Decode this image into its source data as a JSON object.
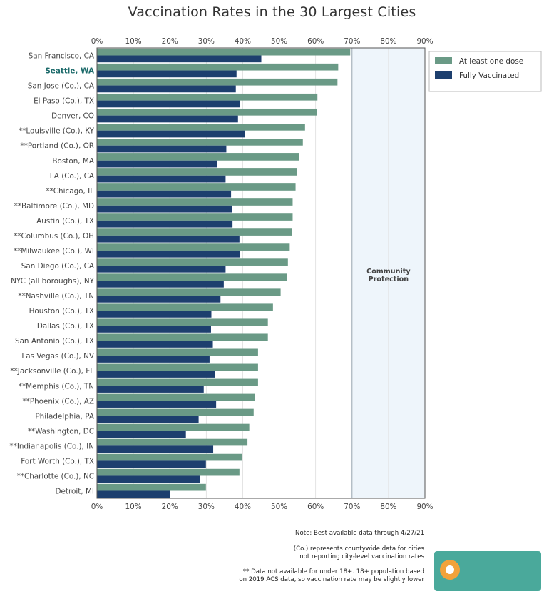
{
  "chart_data": {
    "type": "bar",
    "orientation": "horizontal",
    "title": "Vaccination Rates in the 30 Largest Cities",
    "xlim": [
      0,
      90
    ],
    "x_ticks": [
      "0%",
      "10%",
      "20%",
      "30%",
      "40%",
      "50%",
      "60%",
      "70%",
      "80%",
      "90%"
    ],
    "grid": true,
    "legend_position": "top-right",
    "highlighted_category": "Seattle, WA",
    "categories": [
      "San Francisco, CA",
      "Seattle, WA",
      "San Jose (Co.), CA",
      "El Paso (Co.), TX",
      "Denver, CO",
      "**Louisville (Co.), KY",
      "**Portland (Co.), OR",
      "Boston, MA",
      "LA (Co.), CA",
      "**Chicago, IL",
      "**Baltimore (Co.), MD",
      "Austin (Co.), TX",
      "**Columbus (Co.), OH",
      "**Milwaukee (Co.), WI",
      "San Diego (Co.), CA",
      "NYC (all boroughs), NY",
      "**Nashville (Co.), TN",
      "Houston (Co.), TX",
      "Dallas (Co.), TX",
      "San Antonio (Co.), TX",
      "Las Vegas (Co.), NV",
      "**Jacksonville (Co.), FL",
      "**Memphis (Co.), TN",
      "**Phoenix (Co.), AZ",
      "Philadelphia, PA",
      "**Washington, DC",
      "**Indianapolis (Co.), IN",
      "Fort Worth (Co.), TX",
      "**Charlotte (Co.), NC",
      "Detroit, MI"
    ],
    "series": [
      {
        "name": "At least one dose",
        "color": "#6a9a86",
        "values": [
          69.5,
          66.2,
          66.0,
          60.5,
          60.3,
          57.1,
          56.5,
          55.5,
          54.8,
          54.5,
          53.7,
          53.7,
          53.6,
          52.9,
          52.4,
          52.2,
          50.4,
          48.3,
          46.9,
          46.9,
          44.2,
          44.2,
          44.2,
          43.3,
          43.0,
          41.8,
          41.3,
          39.8,
          39.1,
          29.9
        ]
      },
      {
        "name": "Fully Vaccinated",
        "color": "#1d3f6e",
        "values": [
          45.1,
          38.3,
          38.1,
          39.3,
          38.7,
          40.6,
          35.5,
          33.0,
          35.3,
          36.8,
          37.0,
          37.2,
          39.1,
          39.2,
          35.3,
          34.8,
          33.9,
          31.4,
          31.3,
          31.8,
          30.9,
          32.4,
          29.3,
          32.7,
          27.9,
          24.4,
          31.9,
          29.9,
          28.3,
          20.1
        ]
      }
    ],
    "annotation": {
      "label": "Community Protection",
      "range": [
        70,
        90
      ],
      "line": 70,
      "shade_color": "#eef5fb"
    }
  },
  "notes": {
    "line1": "Note: Best available data through 4/27/21",
    "line2a": "(Co.) represents countywide data for cities",
    "line2b": "not reporting city-level vaccination rates",
    "line3a": "** Data not available for under 18+. 18+ population based",
    "line3b": "on 2019 ACS data, so vaccination rate may be slightly lower"
  },
  "colors": {
    "seattle_label": "#1d6b6b",
    "axis": "#555555",
    "grid": "#dddddd"
  }
}
